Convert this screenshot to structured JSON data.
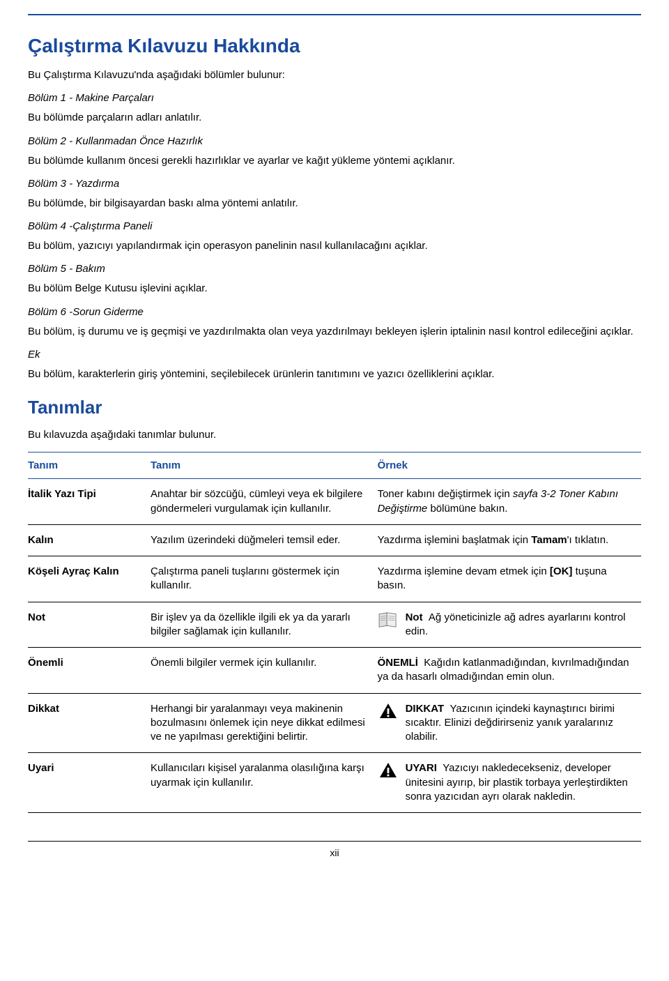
{
  "colors": {
    "heading": "#1a4a9c",
    "body": "#000000",
    "rule": "#1a4a9c",
    "table_border": "#000000"
  },
  "section1": {
    "title": "Çalıştırma Kılavuzu Hakkında",
    "intro": "Bu Çalıştırma Kılavuzu'nda aşağıdaki bölümler bulunur:",
    "chapters": [
      {
        "heading": "Bölüm 1 - Makine Parçaları",
        "body": "Bu bölümde parçaların adları anlatılır."
      },
      {
        "heading": "Bölüm 2 - Kullanmadan Önce Hazırlık",
        "body": "Bu bölümde kullanım öncesi gerekli hazırlıklar ve ayarlar ve kağıt yükleme yöntemi açıklanır."
      },
      {
        "heading": "Bölüm 3 - Yazdırma",
        "body": "Bu bölümde, bir bilgisayardan baskı alma yöntemi anlatılır."
      },
      {
        "heading": "Bölüm 4 -Çalıştırma Paneli",
        "body": "Bu bölüm, yazıcıyı yapılandırmak için operasyon panelinin nasıl kullanılacağını açıklar."
      },
      {
        "heading": "Bölüm 5 - Bakım",
        "body": "Bu bölüm Belge Kutusu işlevini açıklar."
      },
      {
        "heading": "Bölüm 6 -Sorun Giderme",
        "body": "Bu bölüm, iş durumu ve iş geçmişi ve yazdırılmakta olan veya yazdırılmayı bekleyen işlerin iptalinin nasıl kontrol edileceğini açıklar."
      },
      {
        "heading": "Ek",
        "body": "Bu bölüm, karakterlerin giriş yöntemini, seçilebilecek ürünlerin tanıtımını ve yazıcı özelliklerini açıklar."
      }
    ]
  },
  "section2": {
    "title": "Tanımlar",
    "intro": "Bu kılavuzda aşağıdaki tanımlar bulunur.",
    "headers": [
      "Tanım",
      "Tanım",
      "Örnek"
    ],
    "rows": [
      {
        "name": "İtalik Yazı Tipi",
        "desc": "Anahtar bir sözcüğü, cümleyi veya ek bilgilere göndermeleri vurgulamak için kullanılır.",
        "example_html": "Toner kabını değiştirmek için <i>sayfa 3-2 Toner Kabını Değiştirme</i> bölümüne bakın.",
        "icon": null
      },
      {
        "name": "Kalın",
        "desc": "Yazılım üzerindeki düğmeleri temsil eder.",
        "example_html": "Yazdırma işlemini başlatmak için <b>Tamam</b>'ı tıklatın.",
        "icon": null
      },
      {
        "name": "Köşeli Ayraç Kalın",
        "desc": "Çalıştırma paneli tuşlarını göstermek için kullanılır.",
        "example_html": "Yazdırma işlemine devam etmek için <b>[OK]</b> tuşuna basın.",
        "icon": null
      },
      {
        "name": "Not",
        "desc": "Bir işlev ya da özellikle ilgili ek ya da yararlı bilgiler sağlamak için kullanılır.",
        "example_html": "<b>Not</b>&nbsp;&nbsp;Ağ yöneticinizle ağ adres ayarlarını kontrol edin.",
        "icon": "note"
      },
      {
        "name": "Önemli",
        "desc": "Önemli bilgiler vermek için kullanılır.",
        "example_html": "<b>ÖNEMLİ</b>&nbsp;&nbsp;Kağıdın katlanmadığından, kıvrılmadığından ya da hasarlı olmadığından emin olun.",
        "icon": null
      },
      {
        "name": "Dikkat",
        "desc": "Herhangi bir yaralanmayı veya makinenin bozulmasını önlemek için neye dikkat edilmesi ve ne yapılması gerektiğini belirtir.",
        "example_html": "<b>DIKKAT</b>&nbsp;&nbsp;Yazıcının içindeki kaynaştırıcı birimi sıcaktır. Elinizi değdirirseniz yanık yaralarınız olabilir.",
        "icon": "warn"
      },
      {
        "name": "Uyari",
        "desc": "Kullanıcıları kişisel yaralanma olasılığına karşı uyarmak için kullanılır.",
        "example_html": "<b>UYARI</b>&nbsp;&nbsp;Yazıcıyı nakledecekseniz, developer ünitesini ayırıp, bir plastik torbaya yerleştirdikten sonra yazıcıdan ayrı olarak nakledin.",
        "icon": "warn"
      }
    ]
  },
  "page_number": "xii"
}
